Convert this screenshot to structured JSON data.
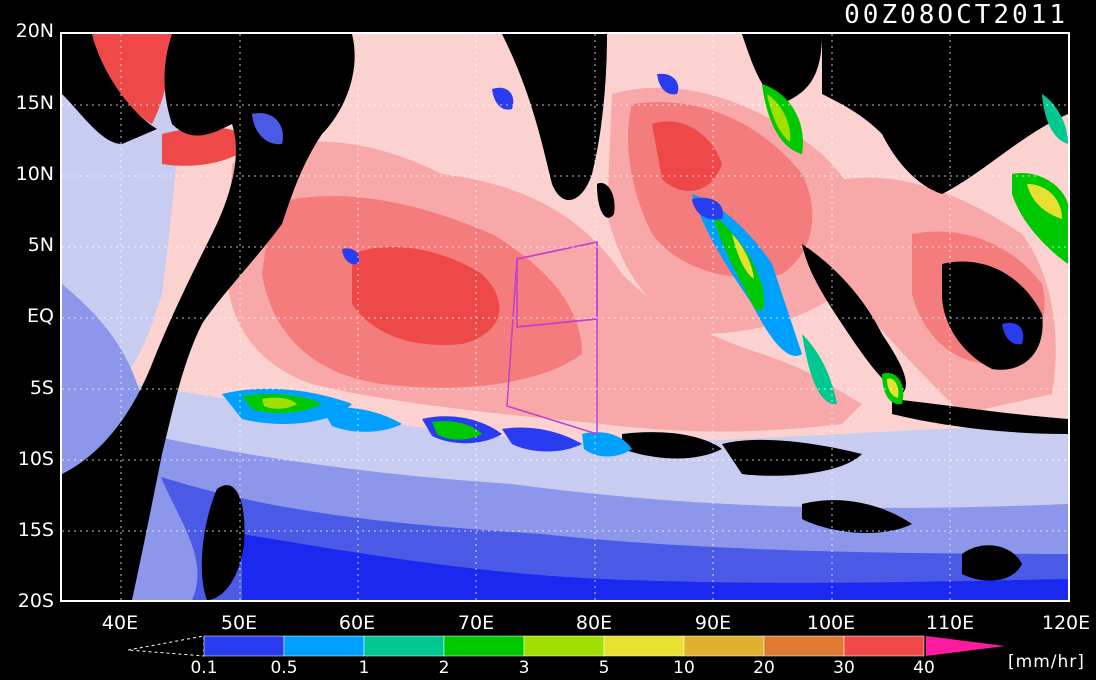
{
  "timestamp": "00Z08OCT2011",
  "map": {
    "lat_labels": [
      "20N",
      "15N",
      "10N",
      "5N",
      "EQ",
      "5S",
      "10S",
      "15S",
      "20S"
    ],
    "lon_labels": [
      "40E",
      "50E",
      "60E",
      "70E",
      "80E",
      "90E",
      "100E",
      "110E",
      "120E"
    ],
    "lat_range": [
      -20,
      20
    ],
    "lon_range": [
      35,
      120
    ],
    "grid_style": "dotted-white"
  },
  "colorbar": {
    "levels": [
      "0.1",
      "0.5",
      "1",
      "2",
      "3",
      "5",
      "10",
      "20",
      "30",
      "40"
    ],
    "colors": [
      "#2a3cf0",
      "#00a0ff",
      "#00c890",
      "#00c800",
      "#a0e000",
      "#e8e030",
      "#e0b030",
      "#e07a30",
      "#f04a48",
      "#ff1aa0"
    ],
    "units": "[mm/hr]"
  },
  "palette": {
    "land": "#000000",
    "very_light": "#c8ccf0",
    "light_blue": "#8c96ea",
    "mid_blue": "#4a5ae6",
    "deep_blue": "#1a28f0",
    "pink_light": "#fcd2d0",
    "pink": "#f8a8a8",
    "salmon": "#f47c7c",
    "red": "#ee4848"
  }
}
